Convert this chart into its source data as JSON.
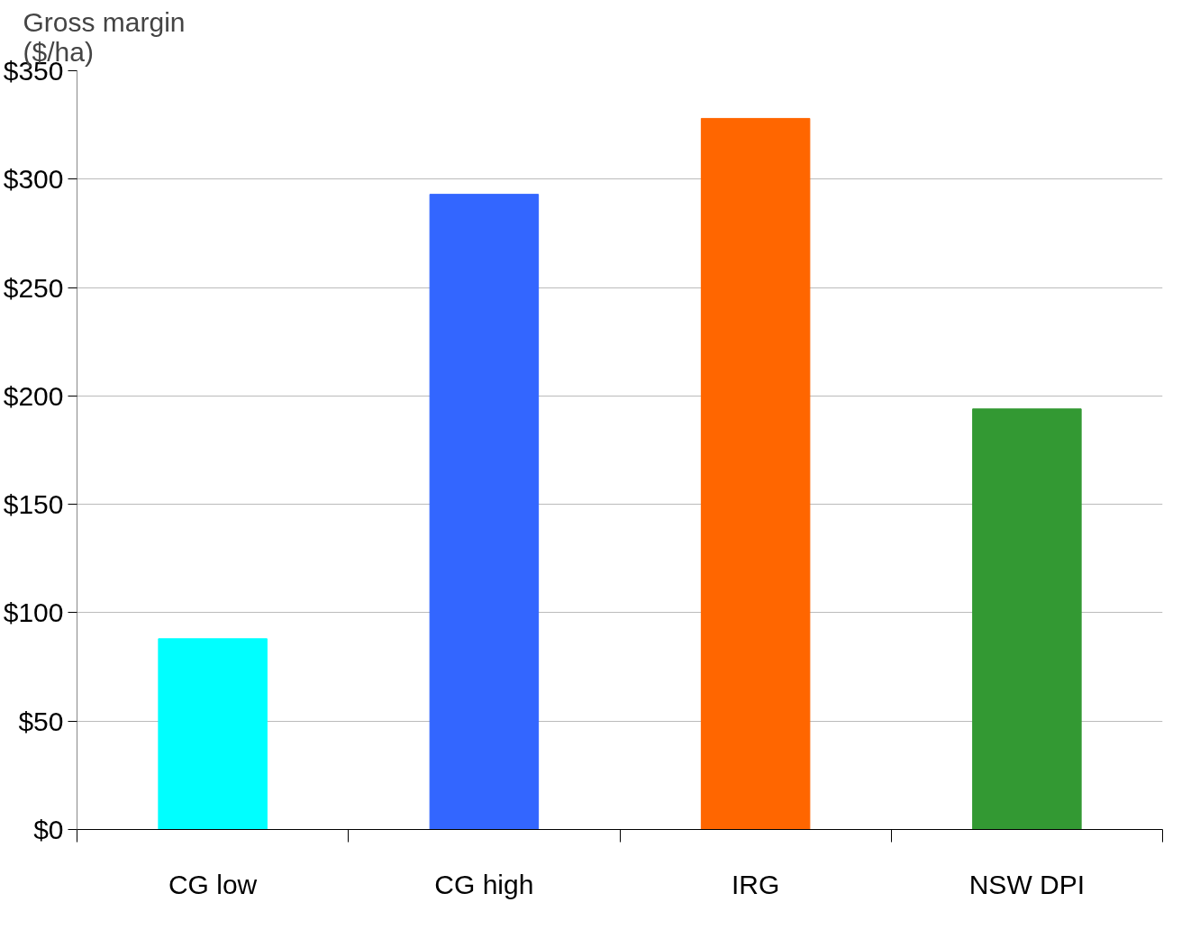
{
  "chart_data": {
    "type": "bar",
    "ylabel": "Gross margin\n($/ha)",
    "categories": [
      "CG low",
      "CG high",
      "IRG",
      "NSW DPI"
    ],
    "values": [
      88,
      293,
      328,
      194
    ],
    "colors": [
      "#00ffff",
      "#3366ff",
      "#ff6600",
      "#339933"
    ],
    "ylim": [
      0,
      350
    ],
    "yticks": [
      {
        "value": 0,
        "label": "$0"
      },
      {
        "value": 50,
        "label": "$50"
      },
      {
        "value": 100,
        "label": "$100"
      },
      {
        "value": 150,
        "label": "$150"
      },
      {
        "value": 200,
        "label": "$200"
      },
      {
        "value": 250,
        "label": "$250"
      },
      {
        "value": 300,
        "label": "$300"
      },
      {
        "value": 350,
        "label": "$350"
      }
    ],
    "grid": "y"
  }
}
